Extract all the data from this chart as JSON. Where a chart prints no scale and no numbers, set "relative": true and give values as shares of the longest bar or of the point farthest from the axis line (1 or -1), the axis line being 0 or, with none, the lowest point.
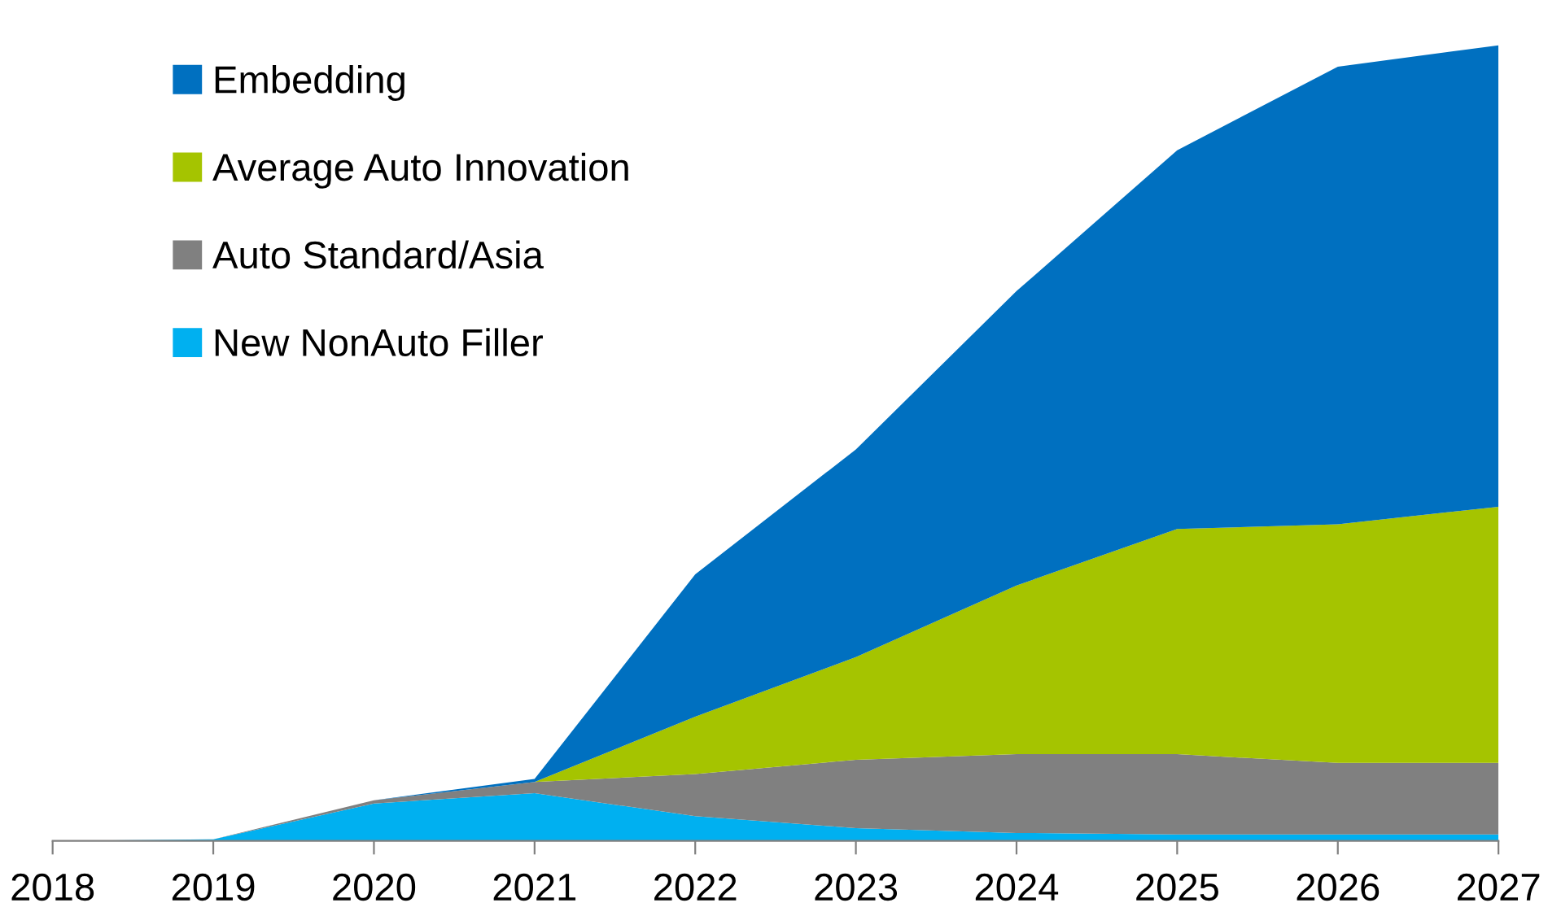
{
  "chart_data": {
    "type": "area",
    "stacked": true,
    "relative": true,
    "x": [
      2018,
      2019,
      2020,
      2021,
      2022,
      2023,
      2024,
      2025,
      2026,
      2027
    ],
    "xlim": [
      2018,
      2027
    ],
    "xticks": [
      2018,
      2019,
      2020,
      2021,
      2022,
      2023,
      2024,
      2025,
      2026,
      2027
    ],
    "series": [
      {
        "name": "New NonAuto Filler",
        "color": "#00b0f0",
        "values": [
          0,
          0.002,
          0.047,
          0.06,
          0.031,
          0.016,
          0.01,
          0.008,
          0.008,
          0.008
        ]
      },
      {
        "name": "Auto Standard/Asia",
        "color": "#808080",
        "values": [
          0,
          0,
          0.004,
          0.014,
          0.053,
          0.086,
          0.099,
          0.101,
          0.09,
          0.09
        ]
      },
      {
        "name": "Average Auto Innovation",
        "color": "#a5c400",
        "values": [
          0,
          0,
          0,
          0,
          0.072,
          0.129,
          0.212,
          0.283,
          0.3,
          0.322
        ]
      },
      {
        "name": "Embedding",
        "color": "#0070c0",
        "values": [
          0,
          0,
          0,
          0.004,
          0.179,
          0.261,
          0.37,
          0.476,
          0.575,
          0.58
        ]
      }
    ],
    "legend": "top left",
    "grid": false
  }
}
